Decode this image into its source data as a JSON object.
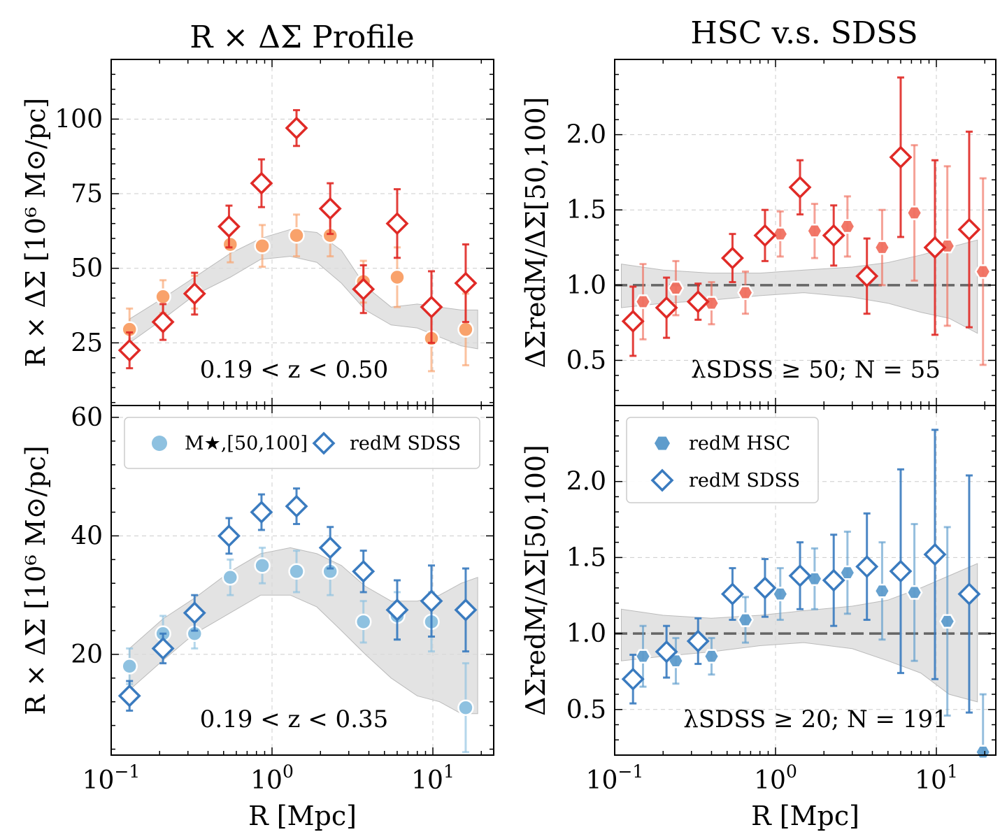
{
  "figure": {
    "left_title": "R × ΔΣ Profile",
    "right_title": "HSC v.s. SDSS",
    "x_label": "R [Mpc]",
    "y_label_left": "R × ΔΣ [10⁶ M⊙/pc]",
    "y_label_right": "ΔΣredM/ΔΣ[50,100]"
  },
  "colors": {
    "red_dark": "#e02a26",
    "red_light": "#f07060",
    "orange": "#f9a26b",
    "blue_dark": "#3a7bbf",
    "blue_light": "#8ec1e0",
    "blue_mid": "#5e9ccc",
    "band": "#d9d9d9",
    "grid": "#cccccc"
  },
  "chart_data": [
    {
      "id": "top_left",
      "type": "scatter",
      "title": "R × ΔΣ Profile",
      "xscale": "log",
      "xlim": [
        0.095,
        25
      ],
      "ylim": [
        4,
        120
      ],
      "yticks": [
        25,
        50,
        75,
        100
      ],
      "xticks": [
        "10^-1",
        "10^0",
        "10^1"
      ],
      "ylabel": "R × ΔΣ [10⁶ M⊙/pc]",
      "annotation": "0.19 < z < 0.50",
      "band": {
        "x": [
          0.13,
          0.21,
          0.33,
          0.55,
          0.85,
          1.3,
          1.9,
          2.7,
          3.8,
          5.5,
          8,
          11,
          15,
          19
        ],
        "lower": [
          25,
          33,
          41,
          47,
          53,
          54,
          52,
          45,
          36,
          31,
          30,
          27,
          24,
          23
        ],
        "upper": [
          33,
          40,
          47,
          55,
          60,
          63,
          62,
          56,
          44,
          37,
          38,
          37,
          36,
          36
        ]
      },
      "series": [
        {
          "name": "M★,[50,100]",
          "marker": "circle",
          "color": "#f9a26b",
          "x": [
            0.13,
            0.21,
            0.33,
            0.55,
            0.87,
            1.42,
            2.3,
            3.7,
            6.0,
            9.8,
            16.0
          ],
          "y": [
            29.5,
            40.5,
            42,
            58,
            57.5,
            61,
            61,
            45.5,
            47,
            26.5,
            29.5
          ],
          "err": [
            7,
            5.5,
            5.5,
            6,
            7,
            7,
            7,
            7,
            10,
            11,
            12
          ]
        },
        {
          "name": "redM SDSS",
          "marker": "diamond",
          "color": "#e02a26",
          "x": [
            0.13,
            0.21,
            0.33,
            0.54,
            0.86,
            1.42,
            2.3,
            3.7,
            6.0,
            9.8,
            16.0
          ],
          "y": [
            22.5,
            32,
            41.5,
            64,
            78.5,
            97,
            70,
            43,
            65,
            37,
            45
          ],
          "err": [
            6,
            6,
            7,
            7,
            8,
            6,
            8.5,
            8,
            11.5,
            12,
            13
          ]
        }
      ]
    },
    {
      "id": "bottom_left",
      "type": "scatter",
      "xscale": "log",
      "xlim": [
        0.095,
        25
      ],
      "ylim": [
        3,
        62
      ],
      "yticks": [
        20,
        40,
        60
      ],
      "xticks": [
        "10^-1",
        "10^0",
        "10^1"
      ],
      "xlabel": "R [Mpc]",
      "ylabel": "R × ΔΣ [10⁶ M⊙/pc]",
      "annotation": "0.19 < z < 0.35",
      "legend": {
        "position": "top",
        "entries": [
          "M★,[50,100]",
          "redM SDSS"
        ]
      },
      "band": {
        "x": [
          0.13,
          0.21,
          0.33,
          0.55,
          0.85,
          1.3,
          1.9,
          2.7,
          3.8,
          5.5,
          8,
          11,
          15,
          19
        ],
        "lower": [
          14,
          19,
          23.5,
          27,
          30,
          30,
          28,
          24,
          20,
          16,
          13,
          12,
          10,
          10
        ],
        "upper": [
          21,
          26,
          29.5,
          34,
          37,
          38,
          37,
          35,
          31.5,
          29,
          29,
          30,
          32,
          33
        ]
      },
      "series": [
        {
          "name": "M★,[50,100]",
          "marker": "circle",
          "color": "#8ec1e0",
          "x": [
            0.13,
            0.21,
            0.33,
            0.55,
            0.87,
            1.42,
            2.3,
            3.7,
            6.0,
            9.8,
            16.0
          ],
          "y": [
            18,
            23.5,
            23.5,
            33,
            35,
            34,
            34,
            25.5,
            26.5,
            25.5,
            11
          ],
          "err": [
            3,
            3,
            2.5,
            3,
            3,
            3.5,
            4,
            3.5,
            4,
            5,
            7.5
          ]
        },
        {
          "name": "redM SDSS",
          "marker": "diamond",
          "color": "#3a7bbf",
          "x": [
            0.13,
            0.21,
            0.33,
            0.54,
            0.86,
            1.42,
            2.3,
            3.7,
            6.0,
            9.8,
            16.0
          ],
          "y": [
            13,
            21,
            27,
            40,
            44,
            45,
            38,
            34,
            27.5,
            29,
            27.5
          ],
          "err": [
            2.5,
            2.5,
            3,
            3,
            3,
            3,
            3.5,
            3.5,
            5,
            6,
            7
          ]
        }
      ]
    },
    {
      "id": "top_right",
      "type": "scatter",
      "title": "HSC v.s. SDSS",
      "xscale": "log",
      "xlim": [
        0.095,
        25
      ],
      "ylim": [
        0.2,
        2.5
      ],
      "yticks": [
        0.5,
        1.0,
        1.5,
        2.0
      ],
      "xticks": [
        "10^-1",
        "10^0",
        "10^1"
      ],
      "ylabel": "ΔΣredM/ΔΣ[50,100]",
      "annotation": "λSDSS ≥ 50;  N = 55",
      "reference_line": 1.0,
      "band": {
        "x": [
          0.11,
          0.2,
          0.4,
          0.8,
          1.5,
          3,
          5,
          8,
          12,
          18
        ],
        "lower": [
          0.85,
          0.88,
          0.9,
          0.93,
          0.95,
          0.92,
          0.88,
          0.82,
          0.78,
          0.68
        ],
        "upper": [
          1.14,
          1.1,
          1.08,
          1.08,
          1.1,
          1.12,
          1.15,
          1.2,
          1.25,
          1.3
        ]
      },
      "series": [
        {
          "name": "redM HSC",
          "marker": "hexagon",
          "color": "#f07060",
          "x": [
            0.15,
            0.24,
            0.4,
            0.65,
            1.07,
            1.75,
            2.8,
            4.6,
            7.3,
            11.7,
            19.5
          ],
          "y": [
            0.89,
            0.98,
            0.88,
            0.95,
            1.34,
            1.36,
            1.39,
            1.25,
            1.48,
            1.26,
            1.09
          ],
          "err": [
            0.25,
            0.18,
            0.14,
            0.14,
            0.15,
            0.18,
            0.2,
            0.25,
            0.45,
            0.53,
            0.62
          ]
        },
        {
          "name": "redM SDSS",
          "marker": "diamond",
          "color": "#e02a26",
          "x": [
            0.13,
            0.21,
            0.33,
            0.54,
            0.86,
            1.42,
            2.3,
            3.7,
            6.0,
            9.8,
            16.0
          ],
          "y": [
            0.76,
            0.85,
            0.89,
            1.18,
            1.33,
            1.65,
            1.33,
            1.06,
            1.85,
            1.25,
            1.37
          ],
          "err": [
            0.23,
            0.2,
            0.12,
            0.16,
            0.17,
            0.18,
            0.2,
            0.25,
            0.53,
            0.58,
            0.65
          ]
        }
      ]
    },
    {
      "id": "bottom_right",
      "type": "scatter",
      "xscale": "log",
      "xlim": [
        0.095,
        25
      ],
      "ylim": [
        0.2,
        2.5
      ],
      "yticks": [
        0.5,
        1.0,
        1.5,
        2.0
      ],
      "xticks": [
        "10^-1",
        "10^0",
        "10^1"
      ],
      "xlabel": "R [Mpc]",
      "ylabel": "ΔΣredM/ΔΣ[50,100]",
      "annotation": "λSDSS ≥ 20;  N = 191",
      "reference_line": 1.0,
      "legend": {
        "position": "top-left",
        "entries": [
          "redM HSC",
          "redM SDSS"
        ]
      },
      "band": {
        "x": [
          0.11,
          0.2,
          0.4,
          0.8,
          1.5,
          3,
          5,
          8,
          12,
          18
        ],
        "lower": [
          0.82,
          0.85,
          0.88,
          0.92,
          0.94,
          0.9,
          0.82,
          0.74,
          0.6,
          0.55
        ],
        "upper": [
          1.16,
          1.12,
          1.1,
          1.12,
          1.15,
          1.18,
          1.22,
          1.3,
          1.38,
          1.46
        ]
      },
      "series": [
        {
          "name": "redM HSC",
          "marker": "hexagon",
          "color": "#5e9ccc",
          "x": [
            0.15,
            0.24,
            0.4,
            0.65,
            1.07,
            1.75,
            2.8,
            4.6,
            7.3,
            11.7,
            19.5
          ],
          "y": [
            0.85,
            0.82,
            0.85,
            1.09,
            1.26,
            1.36,
            1.4,
            1.28,
            1.27,
            1.08,
            0.22
          ],
          "err": [
            0.2,
            0.15,
            0.12,
            0.15,
            0.17,
            0.2,
            0.27,
            0.32,
            0.45,
            0.62,
            0.38
          ]
        },
        {
          "name": "redM SDSS",
          "marker": "diamond",
          "color": "#3a7bbf",
          "x": [
            0.13,
            0.21,
            0.33,
            0.54,
            0.86,
            1.42,
            2.3,
            3.7,
            6.0,
            9.8,
            16.0
          ],
          "y": [
            0.7,
            0.88,
            0.95,
            1.26,
            1.3,
            1.38,
            1.35,
            1.44,
            1.41,
            1.52,
            1.26
          ],
          "err": [
            0.16,
            0.17,
            0.15,
            0.17,
            0.19,
            0.22,
            0.3,
            0.35,
            0.67,
            0.82,
            0.78
          ]
        }
      ]
    }
  ]
}
